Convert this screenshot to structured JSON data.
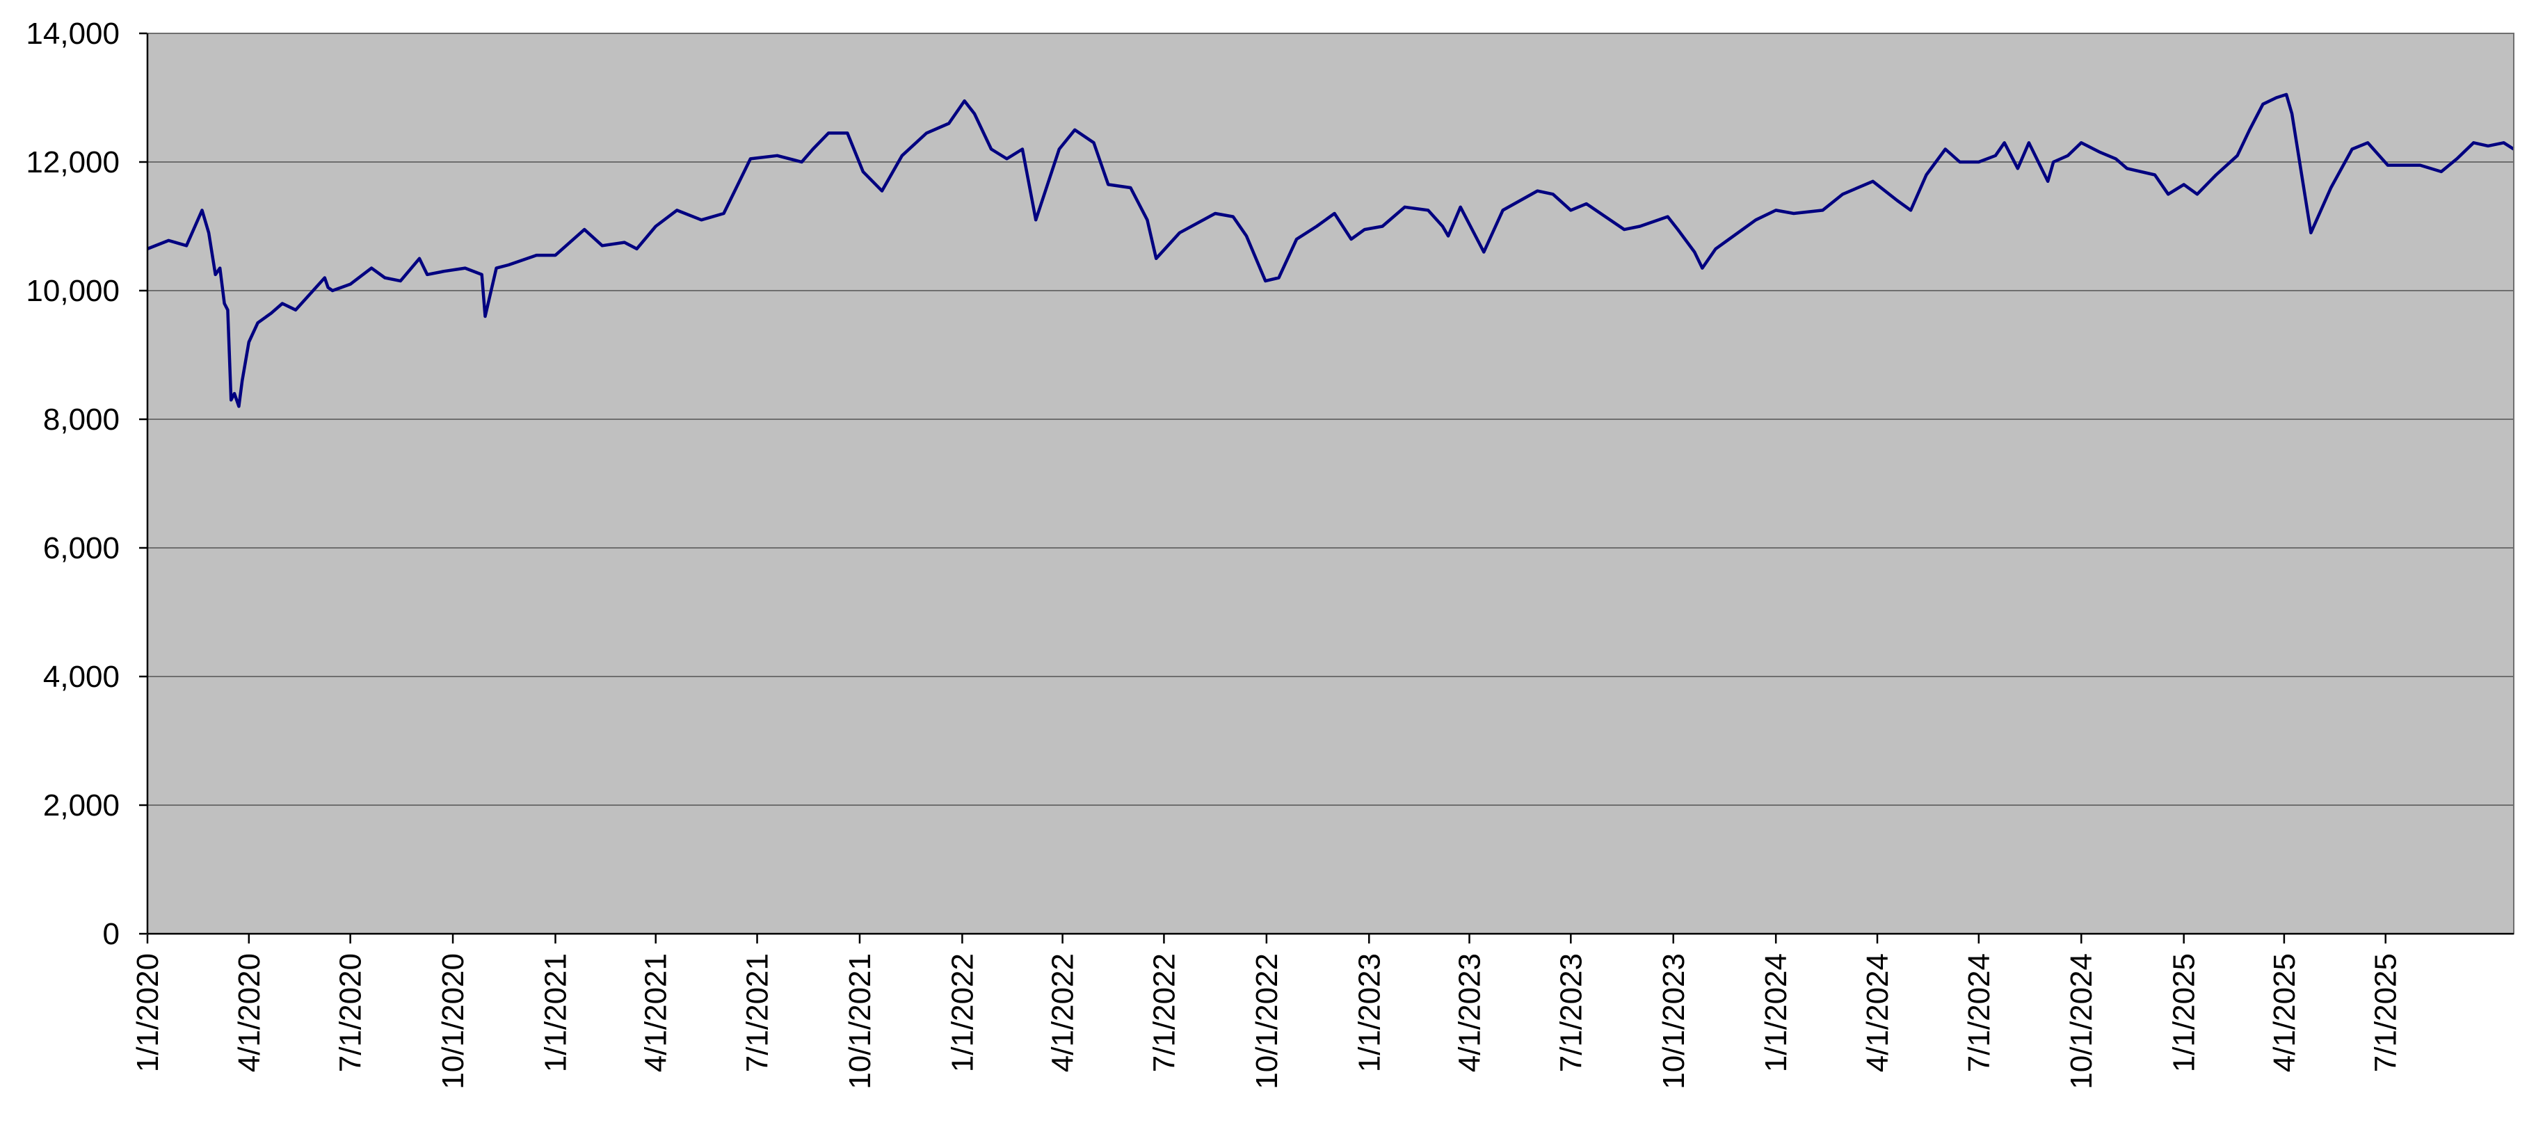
{
  "colors": {
    "plot_background": "#c0c0c0",
    "gridline": "#6e6e6e",
    "series_line": "#000080",
    "axis": "#000000"
  },
  "chart_data": {
    "type": "line",
    "title": "",
    "xlabel": "",
    "ylabel": "",
    "ylim": [
      0,
      14000
    ],
    "xlim": [
      "2020-01-01",
      "2025-10-24"
    ],
    "grid": true,
    "legend": "none",
    "y_ticks": [
      0,
      2000,
      4000,
      6000,
      8000,
      10000,
      12000,
      14000
    ],
    "y_tick_labels": [
      "0",
      "2,000",
      "4,000",
      "6,000",
      "8,000",
      "10,000",
      "12,000",
      "14,000"
    ],
    "x_ticks": [
      "2020-01-01",
      "2020-04-01",
      "2020-07-01",
      "2020-10-01",
      "2021-01-01",
      "2021-04-01",
      "2021-07-01",
      "2021-10-01",
      "2022-01-01",
      "2022-04-01",
      "2022-07-01",
      "2022-10-01",
      "2023-01-01",
      "2023-04-01",
      "2023-07-01",
      "2023-10-01",
      "2024-01-01",
      "2024-04-01",
      "2024-07-01",
      "2024-10-01",
      "2025-01-01",
      "2025-04-01",
      "2025-07-01"
    ],
    "x_tick_labels": [
      "1/1/2020",
      "4/1/2020",
      "7/1/2020",
      "10/1/2020",
      "1/1/2021",
      "4/1/2021",
      "7/1/2021",
      "10/1/2021",
      "1/1/2022",
      "4/1/2022",
      "7/1/2022",
      "10/1/2022",
      "1/1/2023",
      "4/1/2023",
      "7/1/2023",
      "10/1/2023",
      "1/1/2024",
      "4/1/2024",
      "7/1/2024",
      "10/1/2024",
      "1/1/2025",
      "4/1/2025",
      "7/1/2025"
    ],
    "series": [
      {
        "x": [
          "2020-01-01",
          "2020-01-20",
          "2020-02-05",
          "2020-02-19",
          "2020-02-25",
          "2020-03-02",
          "2020-03-06",
          "2020-03-10",
          "2020-03-13",
          "2020-03-16",
          "2020-03-19",
          "2020-03-23",
          "2020-03-26",
          "2020-04-01",
          "2020-04-09",
          "2020-04-21",
          "2020-05-01",
          "2020-05-13",
          "2020-06-08",
          "2020-06-11",
          "2020-06-15",
          "2020-07-01",
          "2020-07-20",
          "2020-08-01",
          "2020-08-15",
          "2020-09-01",
          "2020-09-08",
          "2020-09-23",
          "2020-10-12",
          "2020-10-27",
          "2020-10-30",
          "2020-11-09",
          "2020-11-20",
          "2020-12-15",
          "2021-01-01",
          "2021-01-27",
          "2021-02-12",
          "2021-03-04",
          "2021-03-15",
          "2021-04-01",
          "2021-04-20",
          "2021-05-12",
          "2021-06-01",
          "2021-06-25",
          "2021-07-19",
          "2021-08-10",
          "2021-08-20",
          "2021-09-03",
          "2021-09-20",
          "2021-10-04",
          "2021-10-21",
          "2021-11-08",
          "2021-11-30",
          "2021-12-20",
          "2022-01-03",
          "2022-01-12",
          "2022-01-27",
          "2022-02-10",
          "2022-02-24",
          "2022-03-08",
          "2022-03-29",
          "2022-04-12",
          "2022-04-29",
          "2022-05-12",
          "2022-06-01",
          "2022-06-16",
          "2022-06-24",
          "2022-07-15",
          "2022-08-16",
          "2022-09-01",
          "2022-09-13",
          "2022-09-30",
          "2022-10-12",
          "2022-10-28",
          "2022-11-15",
          "2022-12-01",
          "2022-12-16",
          "2022-12-28",
          "2023-01-13",
          "2023-02-02",
          "2023-02-23",
          "2023-03-08",
          "2023-03-13",
          "2023-03-24",
          "2023-04-14",
          "2023-05-01",
          "2023-06-01",
          "2023-06-15",
          "2023-07-01",
          "2023-07-15",
          "2023-08-01",
          "2023-08-18",
          "2023-09-01",
          "2023-09-26",
          "2023-10-05",
          "2023-10-20",
          "2023-10-27",
          "2023-11-08",
          "2023-11-20",
          "2023-12-14",
          "2024-01-01",
          "2024-01-17",
          "2024-02-12",
          "2024-03-01",
          "2024-03-28",
          "2024-04-19",
          "2024-05-01",
          "2024-05-15",
          "2024-06-01",
          "2024-06-14",
          "2024-07-01",
          "2024-07-16",
          "2024-07-24",
          "2024-08-05",
          "2024-08-15",
          "2024-09-01",
          "2024-09-06",
          "2024-09-19",
          "2024-10-01",
          "2024-10-18",
          "2024-11-01",
          "2024-11-11",
          "2024-12-06",
          "2024-12-18",
          "2025-01-01",
          "2025-01-13",
          "2025-01-30",
          "2025-02-18",
          "2025-03-01",
          "2025-03-13",
          "2025-03-25",
          "2025-04-03",
          "2025-04-08",
          "2025-04-25",
          "2025-05-13",
          "2025-06-01",
          "2025-06-15",
          "2025-07-03",
          "2025-07-20",
          "2025-08-01",
          "2025-08-20",
          "2025-09-03",
          "2025-09-18",
          "2025-10-01",
          "2025-10-15",
          "2025-10-24"
        ],
        "y": [
          10650,
          10780,
          10700,
          11250,
          10900,
          10250,
          10350,
          9800,
          9700,
          8300,
          8400,
          8200,
          8600,
          9200,
          9500,
          9650,
          9800,
          9700,
          10200,
          10050,
          10000,
          10100,
          10350,
          10200,
          10150,
          10500,
          10250,
          10300,
          10350,
          10250,
          9600,
          10350,
          10400,
          10550,
          10550,
          10950,
          10700,
          10750,
          10650,
          11000,
          11250,
          11100,
          11200,
          12050,
          12100,
          12000,
          12200,
          12450,
          12450,
          11850,
          11550,
          12100,
          12450,
          12600,
          12950,
          12750,
          12200,
          12050,
          12200,
          11100,
          12200,
          12500,
          12300,
          11650,
          11600,
          11100,
          10500,
          10900,
          11200,
          11150,
          10850,
          10150,
          10200,
          10800,
          11000,
          11200,
          10800,
          10950,
          11000,
          11300,
          11250,
          11000,
          10850,
          11300,
          10600,
          11250,
          11550,
          11500,
          11250,
          11350,
          11150,
          10950,
          11000,
          11150,
          10950,
          10600,
          10350,
          10650,
          10800,
          11100,
          11250,
          11200,
          11250,
          11500,
          11700,
          11400,
          11250,
          11800,
          12200,
          12000,
          12000,
          12100,
          12300,
          11900,
          12300,
          11700,
          12000,
          12100,
          12300,
          12150,
          12050,
          11900,
          11800,
          11500,
          11650,
          11500,
          11800,
          12100,
          12500,
          12900,
          13000,
          13050,
          12750,
          10900,
          11600,
          12200,
          12300,
          11950,
          11950,
          11950,
          11850,
          12050,
          12300,
          12250,
          12300,
          12200
        ],
        "note": ""
      }
    ]
  }
}
